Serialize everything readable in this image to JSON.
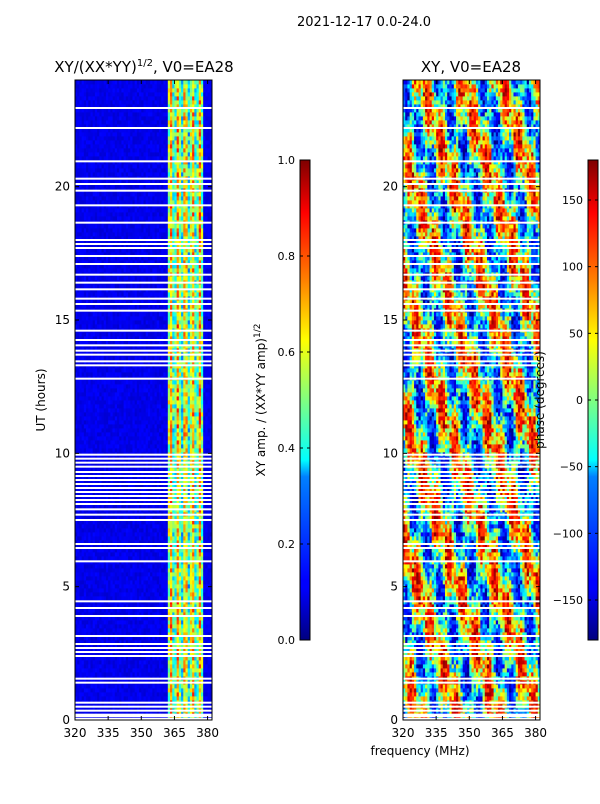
{
  "figure": {
    "suptitle": "2021-12-17 0.0-24.0",
    "shared_xlabel": "frequency (MHz)"
  },
  "chart_data": [
    {
      "type": "heatmap",
      "title_main": "XY/(XX*YY)",
      "title_exp": "1/2",
      "title_tail": ", V0=EA28",
      "xlabel": "",
      "ylabel": "UT (hours)",
      "xlim": [
        320,
        382
      ],
      "ylim": [
        0,
        24
      ],
      "xticks": [
        320,
        335,
        350,
        365,
        380
      ],
      "yticks": [
        0,
        5,
        10,
        15,
        20
      ],
      "colorbar": {
        "label_main": "XY amp. / (XX*YY amp)",
        "label_exp": "1/2",
        "range": [
          0.0,
          1.0
        ],
        "ticks": [
          "0.0",
          "0.2",
          "0.4",
          "0.6",
          "0.8",
          "1.0"
        ],
        "colormap": "jet"
      },
      "bright_band_mhz": [
        362.5,
        378
      ],
      "gap_hours": [
        0.05,
        0.15,
        0.2,
        0.35,
        0.5,
        0.65,
        1.4,
        1.55,
        2.4,
        2.55,
        2.7,
        2.85,
        3.15,
        3.9,
        4.2,
        4.45,
        5.95,
        6.45,
        6.6,
        7.5,
        7.7,
        7.9,
        8.1,
        8.25,
        8.4,
        8.55,
        8.7,
        8.85,
        9.0,
        9.15,
        9.3,
        9.5,
        9.65,
        9.8,
        9.95,
        12.8,
        13.3,
        13.45,
        13.7,
        13.85,
        14.05,
        14.25,
        14.6,
        15.35,
        15.6,
        15.8,
        16.15,
        16.4,
        16.7,
        17.1,
        17.4,
        17.7,
        17.85,
        18.0,
        18.65,
        19.3,
        19.85,
        20.1,
        20.3,
        20.95,
        22.2,
        22.95
      ]
    },
    {
      "type": "heatmap",
      "title_main": "XY, V0=EA28",
      "xlabel": "",
      "ylabel": "",
      "xlim": [
        320,
        382
      ],
      "ylim": [
        0,
        24
      ],
      "xticks": [
        320,
        335,
        350,
        365,
        380
      ],
      "yticks": [
        0,
        5,
        10,
        15,
        20
      ],
      "colorbar": {
        "label_main": "phase (degrees)",
        "range": [
          -180,
          180
        ],
        "ticks": [
          "−150",
          "−100",
          "−50",
          "0",
          "50",
          "100",
          "150"
        ],
        "colormap": "jet"
      },
      "gap_hours": [
        0.05,
        0.15,
        0.2,
        0.35,
        0.5,
        0.65,
        1.4,
        1.55,
        2.4,
        2.55,
        2.7,
        2.85,
        3.15,
        3.9,
        4.2,
        4.45,
        5.95,
        6.45,
        6.6,
        7.5,
        7.7,
        7.9,
        8.1,
        8.25,
        8.4,
        8.55,
        8.7,
        8.85,
        9.0,
        9.15,
        9.3,
        9.5,
        9.65,
        9.8,
        9.95,
        12.8,
        13.3,
        13.45,
        13.7,
        13.85,
        14.05,
        14.25,
        14.6,
        15.35,
        15.6,
        15.8,
        16.15,
        16.4,
        16.7,
        17.1,
        17.4,
        17.7,
        17.85,
        18.0,
        18.65,
        19.3,
        19.85,
        20.1,
        20.3,
        20.95,
        22.2,
        22.95
      ]
    }
  ]
}
